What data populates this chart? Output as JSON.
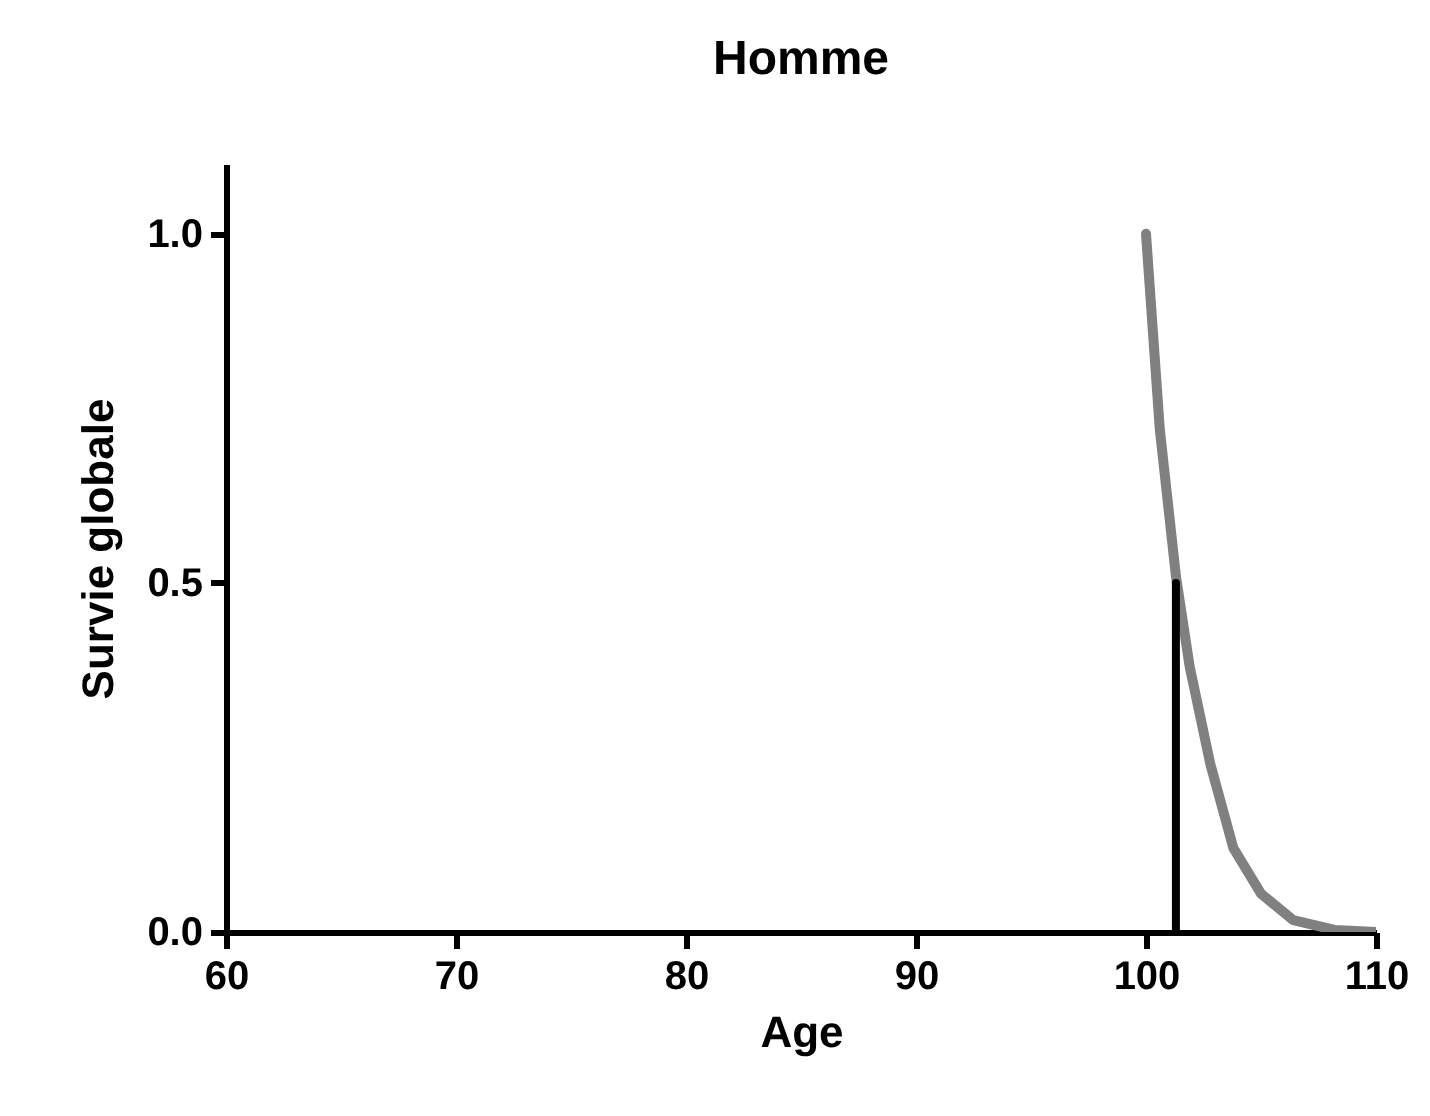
{
  "chart_data": {
    "type": "line",
    "title": "Homme",
    "xlabel": "Age",
    "ylabel": "Survie globale",
    "xlim": [
      60,
      110
    ],
    "xticks": [
      60,
      70,
      80,
      90,
      100,
      110
    ],
    "ylim": [
      0,
      1.1
    ],
    "yticks": [
      {
        "value": 0,
        "label": "0.0"
      },
      0.5,
      {
        "value": 1,
        "label": "1.0"
      }
    ],
    "grid": false,
    "marker": "none",
    "line_style": "solid",
    "series": [
      {
        "color": "#808080",
        "x": [
          100,
          100.6,
          101.3,
          101.9,
          102.8,
          103.8,
          105.0,
          106.4,
          108.2,
          110
        ],
        "values": [
          1.0,
          0.72,
          0.51,
          0.38,
          0.24,
          0.12,
          0.055,
          0.017,
          0.003,
          0
        ]
      },
      {
        "color": "#000000",
        "x": [
          101.3,
          101.3
        ],
        "values": [
          0,
          0.5
        ]
      }
    ]
  }
}
